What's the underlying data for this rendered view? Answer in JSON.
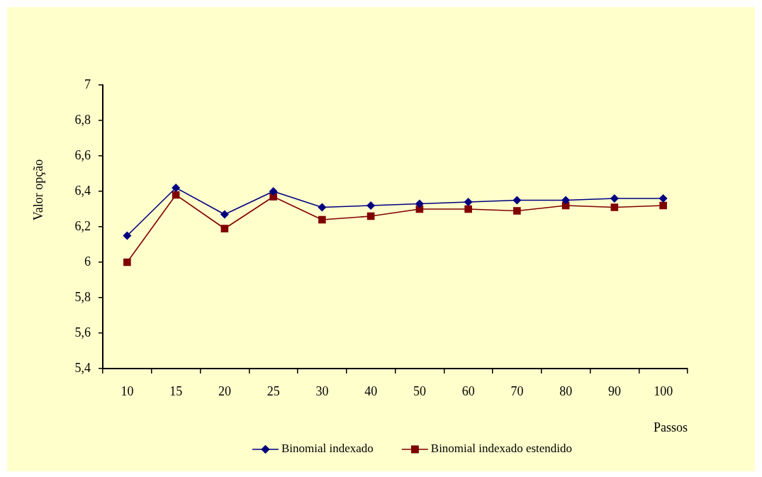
{
  "chart_data": {
    "type": "line",
    "xlabel": "Passos",
    "ylabel": "Valor opção",
    "categories": [
      "10",
      "15",
      "20",
      "25",
      "30",
      "40",
      "50",
      "60",
      "70",
      "80",
      "90",
      "100"
    ],
    "series": [
      {
        "name": "Binomial indexado",
        "color": "#000080",
        "marker": "diamond",
        "values": [
          6.15,
          6.42,
          6.27,
          6.4,
          6.31,
          6.32,
          6.33,
          6.34,
          6.35,
          6.35,
          6.36,
          6.36
        ]
      },
      {
        "name": "Binomial indexado estendido",
        "color": "#800000",
        "marker": "square",
        "values": [
          6.0,
          6.38,
          6.19,
          6.37,
          6.24,
          6.26,
          6.3,
          6.3,
          6.29,
          6.32,
          6.31,
          6.32
        ]
      }
    ],
    "ylim": [
      5.4,
      7
    ],
    "yticks": [
      {
        "value": 5.4,
        "label": "5,4"
      },
      {
        "value": 5.6,
        "label": "5,6"
      },
      {
        "value": 5.8,
        "label": "5,8"
      },
      6,
      {
        "value": 6.2,
        "label": "6,2"
      },
      {
        "value": 6.4,
        "label": "6,4"
      },
      {
        "value": 6.6,
        "label": "6,6"
      },
      {
        "value": 6.8,
        "label": "6,8"
      },
      7
    ],
    "grid": false,
    "legend": "bottom",
    "line_style": "solid"
  }
}
